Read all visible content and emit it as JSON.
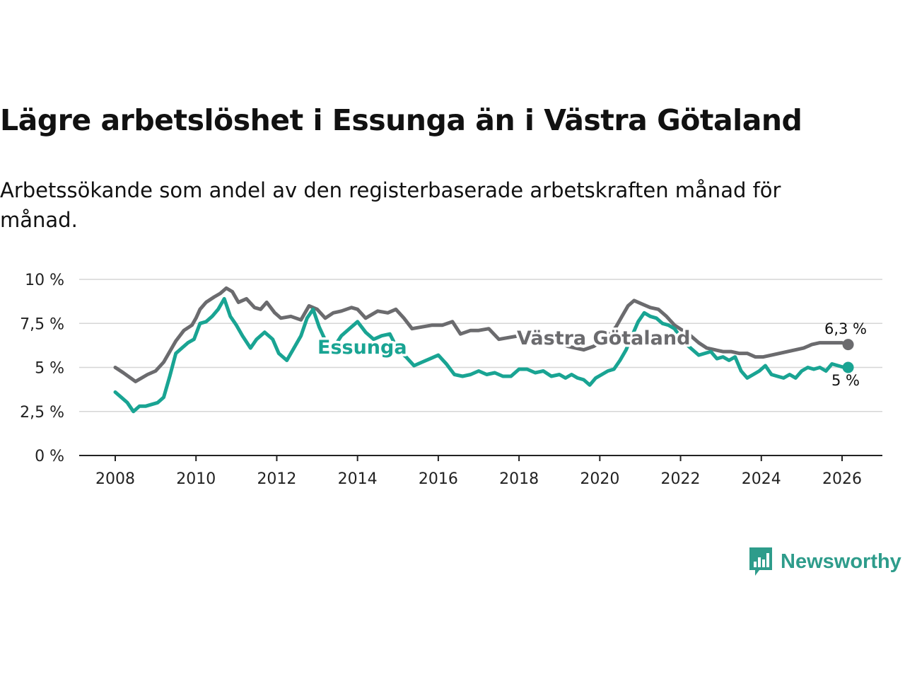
{
  "title": "Lägre arbetslöshet i Essunga än i Västra Götaland",
  "subtitle": "Arbetssökande som andel av den registerbaserade arbetskraften månad för månad.",
  "brand": {
    "name": "Newsworthy",
    "icon": "newsworthy-logo-icon",
    "color": "#2e9c8b"
  },
  "chart_data": {
    "type": "line",
    "title": "Lägre arbetslöshet i Essunga än i Västra Götaland",
    "xlabel": "",
    "ylabel": "",
    "xlim": [
      2007.55,
      2027.0
    ],
    "ylim": [
      0,
      10
    ],
    "grid": true,
    "y_ticks": [
      0,
      2.5,
      5,
      7.5,
      10
    ],
    "y_tick_labels": [
      "0 %",
      "2,5 %",
      "5 %",
      "7,5 %",
      "10 %"
    ],
    "x_ticks": [
      2008,
      2010,
      2012,
      2014,
      2016,
      2018,
      2020,
      2022,
      2024,
      2026
    ],
    "x_tick_labels": [
      "2008",
      "2010",
      "2012",
      "2014",
      "2016",
      "2018",
      "2020",
      "2022",
      "2024",
      "2026"
    ],
    "series": [
      {
        "name": "Västra Götaland",
        "color": "#6b6b6e",
        "end_label": "6,3 %",
        "points": [
          [
            2008.0,
            5.0
          ],
          [
            2008.2,
            4.7
          ],
          [
            2008.5,
            4.2
          ],
          [
            2008.8,
            4.6
          ],
          [
            2009.0,
            4.8
          ],
          [
            2009.2,
            5.3
          ],
          [
            2009.5,
            6.5
          ],
          [
            2009.7,
            7.1
          ],
          [
            2009.9,
            7.4
          ],
          [
            2010.0,
            7.8
          ],
          [
            2010.1,
            8.3
          ],
          [
            2010.25,
            8.7
          ],
          [
            2010.45,
            9.0
          ],
          [
            2010.6,
            9.2
          ],
          [
            2010.75,
            9.5
          ],
          [
            2010.9,
            9.3
          ],
          [
            2011.05,
            8.7
          ],
          [
            2011.25,
            8.9
          ],
          [
            2011.45,
            8.4
          ],
          [
            2011.6,
            8.3
          ],
          [
            2011.75,
            8.7
          ],
          [
            2011.95,
            8.1
          ],
          [
            2012.1,
            7.8
          ],
          [
            2012.35,
            7.9
          ],
          [
            2012.6,
            7.7
          ],
          [
            2012.8,
            8.5
          ],
          [
            2013.0,
            8.3
          ],
          [
            2013.2,
            7.8
          ],
          [
            2013.4,
            8.1
          ],
          [
            2013.6,
            8.2
          ],
          [
            2013.85,
            8.4
          ],
          [
            2014.0,
            8.3
          ],
          [
            2014.2,
            7.8
          ],
          [
            2014.5,
            8.2
          ],
          [
            2014.75,
            8.1
          ],
          [
            2014.95,
            8.3
          ],
          [
            2015.15,
            7.8
          ],
          [
            2015.35,
            7.2
          ],
          [
            2015.6,
            7.3
          ],
          [
            2015.85,
            7.4
          ],
          [
            2016.1,
            7.4
          ],
          [
            2016.35,
            7.6
          ],
          [
            2016.55,
            6.9
          ],
          [
            2016.8,
            7.1
          ],
          [
            2017.0,
            7.1
          ],
          [
            2017.25,
            7.2
          ],
          [
            2017.5,
            6.6
          ],
          [
            2017.75,
            6.7
          ],
          [
            2018.0,
            6.8
          ],
          [
            2018.25,
            6.9
          ],
          [
            2018.5,
            6.5
          ],
          [
            2018.7,
            6.4
          ],
          [
            2018.95,
            6.5
          ],
          [
            2019.2,
            6.2
          ],
          [
            2019.4,
            6.1
          ],
          [
            2019.6,
            6.0
          ],
          [
            2019.85,
            6.2
          ],
          [
            2020.05,
            6.5
          ],
          [
            2020.25,
            6.9
          ],
          [
            2020.4,
            7.3
          ],
          [
            2020.55,
            7.9
          ],
          [
            2020.7,
            8.5
          ],
          [
            2020.85,
            8.8
          ],
          [
            2021.05,
            8.6
          ],
          [
            2021.25,
            8.4
          ],
          [
            2021.45,
            8.3
          ],
          [
            2021.65,
            7.9
          ],
          [
            2021.85,
            7.4
          ],
          [
            2022.05,
            7.1
          ],
          [
            2022.25,
            6.8
          ],
          [
            2022.45,
            6.4
          ],
          [
            2022.65,
            6.1
          ],
          [
            2022.85,
            6.0
          ],
          [
            2023.05,
            5.9
          ],
          [
            2023.25,
            5.9
          ],
          [
            2023.45,
            5.8
          ],
          [
            2023.65,
            5.8
          ],
          [
            2023.85,
            5.6
          ],
          [
            2024.05,
            5.6
          ],
          [
            2024.25,
            5.7
          ],
          [
            2024.45,
            5.8
          ],
          [
            2024.65,
            5.9
          ],
          [
            2024.85,
            6.0
          ],
          [
            2025.05,
            6.1
          ],
          [
            2025.25,
            6.3
          ],
          [
            2025.45,
            6.4
          ],
          [
            2025.65,
            6.4
          ],
          [
            2025.85,
            6.4
          ],
          [
            2026.0,
            6.4
          ],
          [
            2026.15,
            6.3
          ]
        ]
      },
      {
        "name": "Essunga",
        "color": "#19a493",
        "end_label": "5 %",
        "points": [
          [
            2008.0,
            3.6
          ],
          [
            2008.15,
            3.3
          ],
          [
            2008.3,
            3.0
          ],
          [
            2008.45,
            2.5
          ],
          [
            2008.6,
            2.8
          ],
          [
            2008.75,
            2.8
          ],
          [
            2008.9,
            2.9
          ],
          [
            2009.05,
            3.0
          ],
          [
            2009.2,
            3.3
          ],
          [
            2009.35,
            4.5
          ],
          [
            2009.5,
            5.8
          ],
          [
            2009.65,
            6.1
          ],
          [
            2009.8,
            6.4
          ],
          [
            2009.95,
            6.6
          ],
          [
            2010.1,
            7.5
          ],
          [
            2010.25,
            7.6
          ],
          [
            2010.4,
            7.9
          ],
          [
            2010.55,
            8.3
          ],
          [
            2010.7,
            8.9
          ],
          [
            2010.85,
            7.9
          ],
          [
            2011.0,
            7.4
          ],
          [
            2011.15,
            6.8
          ],
          [
            2011.35,
            6.1
          ],
          [
            2011.5,
            6.6
          ],
          [
            2011.7,
            7.0
          ],
          [
            2011.9,
            6.6
          ],
          [
            2012.05,
            5.8
          ],
          [
            2012.25,
            5.4
          ],
          [
            2012.4,
            6.0
          ],
          [
            2012.6,
            6.8
          ],
          [
            2012.75,
            7.8
          ],
          [
            2012.9,
            8.3
          ],
          [
            2013.05,
            7.3
          ],
          [
            2013.25,
            6.3
          ],
          [
            2013.4,
            6.1
          ],
          [
            2013.6,
            6.8
          ],
          [
            2013.8,
            7.2
          ],
          [
            2014.0,
            7.6
          ],
          [
            2014.2,
            7.0
          ],
          [
            2014.4,
            6.6
          ],
          [
            2014.6,
            6.8
          ],
          [
            2014.8,
            6.9
          ],
          [
            2015.0,
            6.0
          ],
          [
            2015.2,
            5.6
          ],
          [
            2015.4,
            5.1
          ],
          [
            2015.6,
            5.3
          ],
          [
            2015.8,
            5.5
          ],
          [
            2016.0,
            5.7
          ],
          [
            2016.2,
            5.2
          ],
          [
            2016.4,
            4.6
          ],
          [
            2016.6,
            4.5
          ],
          [
            2016.8,
            4.6
          ],
          [
            2017.0,
            4.8
          ],
          [
            2017.2,
            4.6
          ],
          [
            2017.4,
            4.7
          ],
          [
            2017.6,
            4.5
          ],
          [
            2017.8,
            4.5
          ],
          [
            2018.0,
            4.9
          ],
          [
            2018.2,
            4.9
          ],
          [
            2018.4,
            4.7
          ],
          [
            2018.6,
            4.8
          ],
          [
            2018.8,
            4.5
          ],
          [
            2019.0,
            4.6
          ],
          [
            2019.15,
            4.4
          ],
          [
            2019.3,
            4.6
          ],
          [
            2019.45,
            4.4
          ],
          [
            2019.6,
            4.3
          ],
          [
            2019.75,
            4.0
          ],
          [
            2019.9,
            4.4
          ],
          [
            2020.05,
            4.6
          ],
          [
            2020.2,
            4.8
          ],
          [
            2020.35,
            4.9
          ],
          [
            2020.5,
            5.4
          ],
          [
            2020.65,
            6.0
          ],
          [
            2020.8,
            6.8
          ],
          [
            2020.95,
            7.6
          ],
          [
            2021.1,
            8.1
          ],
          [
            2021.25,
            7.9
          ],
          [
            2021.4,
            7.8
          ],
          [
            2021.55,
            7.5
          ],
          [
            2021.7,
            7.4
          ],
          [
            2021.85,
            7.2
          ],
          [
            2022.0,
            6.7
          ],
          [
            2022.15,
            6.3
          ],
          [
            2022.3,
            6.0
          ],
          [
            2022.45,
            5.7
          ],
          [
            2022.6,
            5.8
          ],
          [
            2022.75,
            5.9
          ],
          [
            2022.9,
            5.5
          ],
          [
            2023.05,
            5.6
          ],
          [
            2023.2,
            5.4
          ],
          [
            2023.35,
            5.6
          ],
          [
            2023.5,
            4.8
          ],
          [
            2023.65,
            4.4
          ],
          [
            2023.8,
            4.6
          ],
          [
            2023.95,
            4.8
          ],
          [
            2024.1,
            5.1
          ],
          [
            2024.25,
            4.6
          ],
          [
            2024.4,
            4.5
          ],
          [
            2024.55,
            4.4
          ],
          [
            2024.7,
            4.6
          ],
          [
            2024.85,
            4.4
          ],
          [
            2025.0,
            4.8
          ],
          [
            2025.15,
            5.0
          ],
          [
            2025.3,
            4.9
          ],
          [
            2025.45,
            5.0
          ],
          [
            2025.6,
            4.8
          ],
          [
            2025.75,
            5.2
          ],
          [
            2025.9,
            5.1
          ],
          [
            2026.05,
            5.0
          ],
          [
            2026.15,
            5.0
          ]
        ]
      }
    ]
  }
}
